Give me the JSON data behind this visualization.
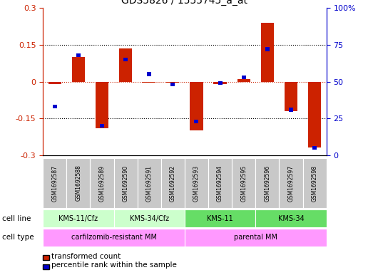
{
  "title": "GDS5826 / 1555745_a_at",
  "samples": [
    "GSM1692587",
    "GSM1692588",
    "GSM1692589",
    "GSM1692590",
    "GSM1692591",
    "GSM1692592",
    "GSM1692593",
    "GSM1692594",
    "GSM1692595",
    "GSM1692596",
    "GSM1692597",
    "GSM1692598"
  ],
  "transformed_count": [
    -0.01,
    0.1,
    -0.19,
    0.135,
    -0.005,
    -0.005,
    -0.2,
    -0.01,
    0.01,
    0.24,
    -0.12,
    -0.27
  ],
  "percentile_rank": [
    33,
    68,
    20,
    65,
    55,
    48,
    23,
    49,
    53,
    72,
    31,
    5
  ],
  "cell_line_groups": [
    {
      "label": "KMS-11/Cfz",
      "start": 0,
      "end": 3
    },
    {
      "label": "KMS-34/Cfz",
      "start": 3,
      "end": 6
    },
    {
      "label": "KMS-11",
      "start": 6,
      "end": 9
    },
    {
      "label": "KMS-34",
      "start": 9,
      "end": 12
    }
  ],
  "cell_line_colors": [
    "#ccffcc",
    "#ccffcc",
    "#66dd66",
    "#66dd66"
  ],
  "cell_type_groups": [
    {
      "label": "carfilzomib-resistant MM",
      "start": 0,
      "end": 6
    },
    {
      "label": "parental MM",
      "start": 6,
      "end": 12
    }
  ],
  "cell_type_color": "#ff99ff",
  "ylim": [
    -0.3,
    0.3
  ],
  "yticks_left": [
    -0.3,
    -0.15,
    0,
    0.15,
    0.3
  ],
  "yticks_right": [
    0,
    25,
    50,
    75,
    100
  ],
  "bar_color_red": "#cc2200",
  "bar_color_blue": "#0000cc",
  "sample_bg": "#c8c8c8",
  "right_axis_label": "100%"
}
